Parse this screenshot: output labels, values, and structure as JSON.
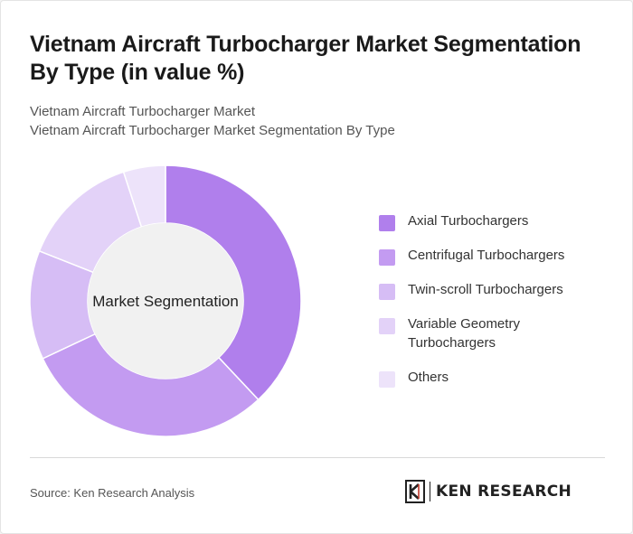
{
  "header": {
    "title": "Vietnam Aircraft Turbocharger Market Segmentation By Type (in value %)",
    "subtitle_1": "Vietnam Aircraft Turbocharger Market",
    "subtitle_2": "Vietnam Aircraft Turbocharger Market Segmentation By Type"
  },
  "chart_data": {
    "type": "pie",
    "variant": "donut",
    "center_label": "Market Segmentation",
    "categories": [
      "Axial Turbochargers",
      "Centrifugal Turbochargers",
      "Twin-scroll Turbochargers",
      "Variable Geometry Turbochargers",
      "Others"
    ],
    "values": [
      38,
      30,
      13,
      14,
      5
    ],
    "unit": "%",
    "colors": [
      "#b07fec",
      "#c39bf1",
      "#d6bdf5",
      "#e3d2f8",
      "#ede3fa"
    ],
    "legend_position": "right"
  },
  "footer": {
    "source": "Source: Ken Research Analysis",
    "logo_text": "KEN RESEARCH"
  }
}
